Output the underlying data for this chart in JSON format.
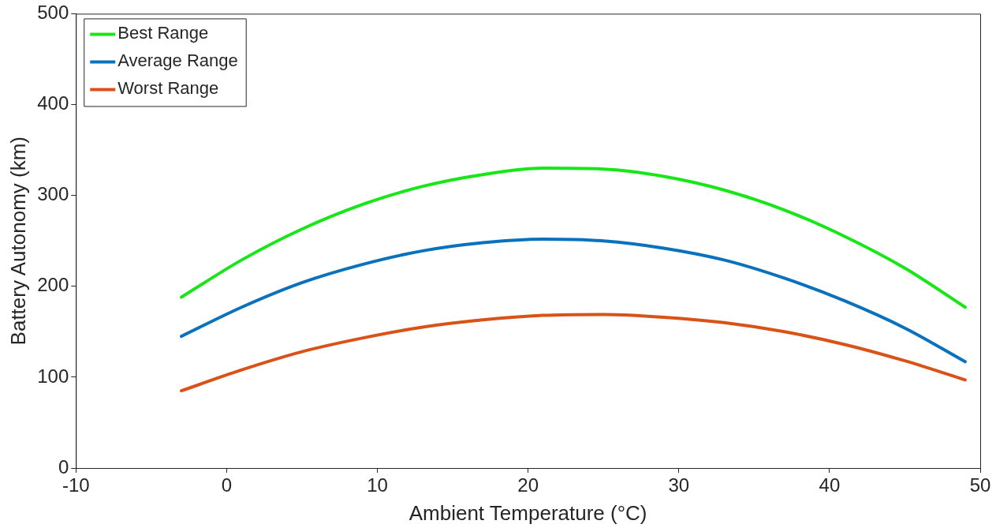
{
  "chart_data": {
    "type": "line",
    "xlabel": "Ambient Temperature (°C)",
    "ylabel": "Battery Autonomy (km)",
    "x": [
      -3,
      1,
      5,
      9,
      13,
      17,
      21,
      25,
      29,
      33,
      37,
      41,
      45,
      49
    ],
    "xlim": [
      -10,
      50
    ],
    "xticks": [
      -10,
      0,
      10,
      20,
      30,
      40,
      50
    ],
    "ylim": [
      0,
      500
    ],
    "yticks": [
      0,
      100,
      200,
      300,
      400,
      500
    ],
    "grid": false,
    "legend": "top left",
    "marker": "none",
    "line_style": "solid",
    "series": [
      {
        "name": "Best Range",
        "color": "#19e619",
        "values": [
          188,
          229,
          263,
          290,
          310,
          323,
          330,
          329,
          321,
          306,
          284,
          255,
          220,
          177
        ]
      },
      {
        "name": "Average Range",
        "color": "#0a72bd",
        "values": [
          145,
          177,
          204,
          224,
          239,
          248,
          252,
          250,
          242,
          229,
          209,
          184,
          154,
          117
        ]
      },
      {
        "name": "Worst Range",
        "color": "#d95319",
        "values": [
          85,
          108,
          128,
          143,
          155,
          163,
          168,
          169,
          166,
          160,
          150,
          136,
          118,
          97
        ]
      }
    ]
  }
}
